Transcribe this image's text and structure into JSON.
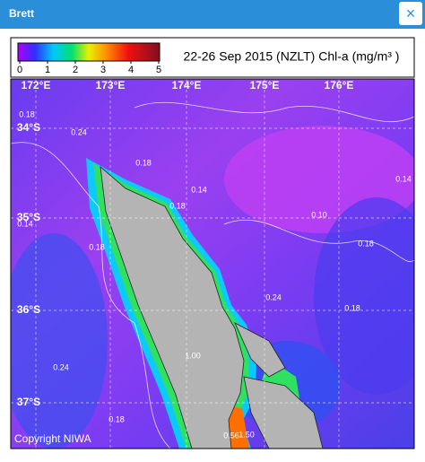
{
  "header": {
    "title": "Brett",
    "close": "×"
  },
  "legend": {
    "ticks": [
      "0",
      "1",
      "2",
      "3",
      "4",
      "5"
    ],
    "title": "22-26 Sep 2015 (NZLT) Chl-a (mg/m³ )"
  },
  "map": {
    "lon_labels": [
      "172°E",
      "173°E",
      "174°E",
      "175°E",
      "176°E"
    ],
    "lat_labels": [
      "34°S",
      "35°S",
      "36°S",
      "37°S"
    ],
    "contour_labels": [
      "0.18",
      "0.24",
      "0.18",
      "0.14",
      "0.18",
      "0.10",
      "0.14",
      "0.18",
      "0.18",
      "0.24",
      "0.18",
      "0.24",
      "1.00",
      "0.56",
      "1.50",
      "0.14",
      "0.18"
    ],
    "copyright": "Copyright NIWA"
  }
}
